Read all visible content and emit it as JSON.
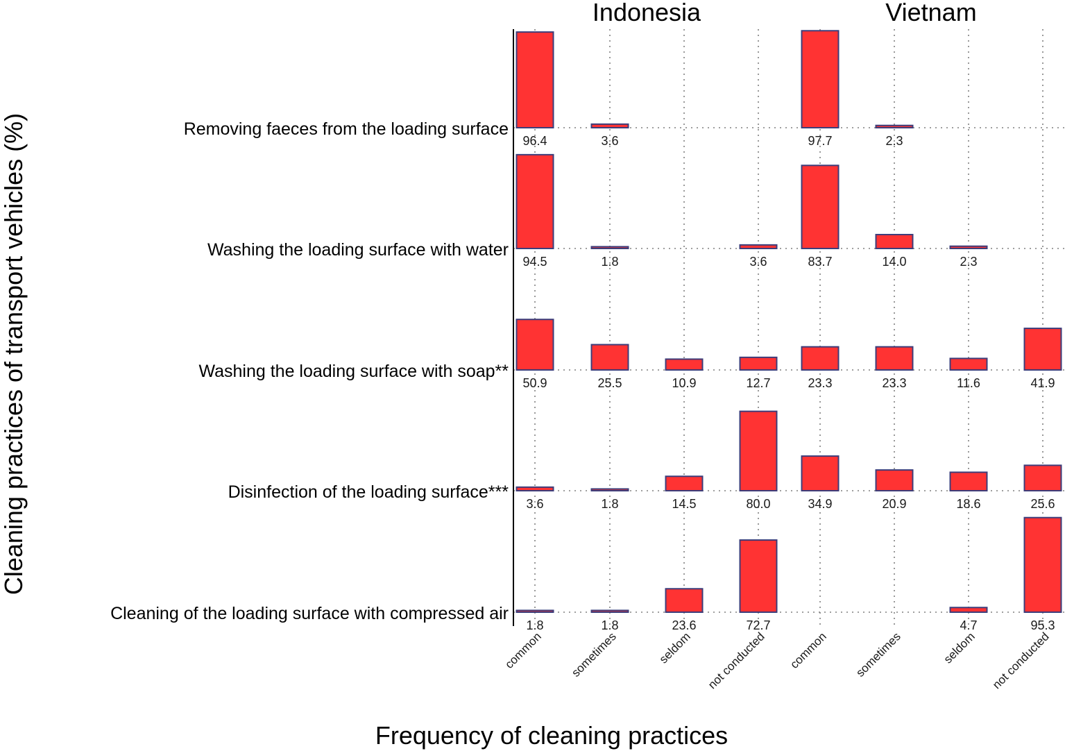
{
  "chart_data": {
    "type": "bar",
    "facets": [
      "Indonesia",
      "Vietnam"
    ],
    "categories": [
      "common",
      "sometimes",
      "seldom",
      "not conducted"
    ],
    "rows": [
      {
        "label": "Removing faeces from the loading surface",
        "Indonesia": [
          96.4,
          3.6,
          null,
          null
        ],
        "Vietnam": [
          97.7,
          2.3,
          null,
          null
        ]
      },
      {
        "label": "Washing the loading surface with water",
        "Indonesia": [
          94.5,
          1.8,
          null,
          3.6
        ],
        "Vietnam": [
          83.7,
          14.0,
          2.3,
          null
        ]
      },
      {
        "label": "Washing the loading surface with soap**",
        "Indonesia": [
          50.9,
          25.5,
          10.9,
          12.7
        ],
        "Vietnam": [
          23.3,
          23.3,
          11.6,
          41.9
        ]
      },
      {
        "label": "Disinfection of the loading surface***",
        "Indonesia": [
          3.6,
          1.8,
          14.5,
          80.0
        ],
        "Vietnam": [
          34.9,
          20.9,
          18.6,
          25.6
        ]
      },
      {
        "label": "Cleaning of the loading surface with compressed air",
        "Indonesia": [
          1.8,
          1.8,
          23.6,
          72.7
        ],
        "Vietnam": [
          null,
          null,
          4.7,
          95.3
        ]
      }
    ],
    "xlabel": "Frequency of cleaning practices",
    "ylabel": "Cleaning practices of transport vehicles (%)",
    "ylim": [
      0,
      100
    ],
    "bar_color": "#ff3333",
    "bar_outline": "#3d3d7a",
    "grid": "dotted"
  }
}
